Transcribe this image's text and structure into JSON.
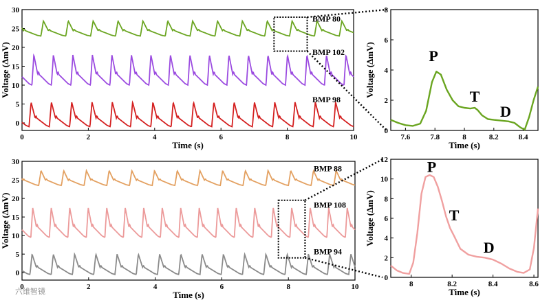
{
  "watermark": "六维智镜",
  "chart_data": [
    {
      "id": "top-main",
      "type": "line",
      "xlabel": "Time (s)",
      "ylabel": "Voltage (ΔmV)",
      "xlim": [
        0,
        10
      ],
      "ylim": [
        -2,
        30
      ],
      "xticks": [
        0,
        2,
        4,
        6,
        8,
        10
      ],
      "yticks": [
        0,
        5,
        10,
        15,
        20,
        25,
        30
      ],
      "series": [
        {
          "name": "BMP 80",
          "bpm": 80,
          "color": "#6aa520",
          "baseline": 23,
          "amp": 4
        },
        {
          "name": "BMP 102",
          "bpm": 102,
          "color": "#9b4be0",
          "baseline": 10,
          "amp": 8
        },
        {
          "name": "BMP 98",
          "bpm": 98,
          "color": "#d42020",
          "baseline": -1,
          "amp": 6.5
        }
      ],
      "zoom_box": {
        "x": [
          7.6,
          8.6
        ],
        "y": [
          19,
          28
        ]
      }
    },
    {
      "id": "top-zoom",
      "type": "line",
      "xlabel": "Time (s)",
      "ylabel": "Voltage (ΔmV)",
      "xlim": [
        7.5,
        8.5
      ],
      "ylim": [
        0,
        8
      ],
      "xticks": [
        7.6,
        7.8,
        8.0,
        8.2,
        8.4
      ],
      "yticks": [
        0,
        2,
        4,
        6,
        8
      ],
      "color": "#6aa520",
      "x": [
        7.5,
        7.55,
        7.6,
        7.65,
        7.7,
        7.74,
        7.78,
        7.81,
        7.84,
        7.88,
        7.92,
        7.96,
        8.0,
        8.04,
        8.07,
        8.09,
        8.12,
        8.16,
        8.2,
        8.25,
        8.3,
        8.34,
        8.38,
        8.41,
        8.44,
        8.47,
        8.5
      ],
      "y": [
        0.7,
        0.5,
        0.35,
        0.3,
        0.45,
        1.3,
        3.2,
        3.9,
        3.7,
        2.7,
        2.0,
        1.6,
        1.5,
        1.45,
        1.5,
        1.35,
        1.0,
        0.75,
        0.7,
        0.65,
        0.6,
        0.5,
        0.2,
        0.05,
        0.9,
        2.0,
        2.9
      ],
      "annotations": [
        {
          "label": "P",
          "x": 7.79,
          "y": 4.6
        },
        {
          "label": "T",
          "x": 8.07,
          "y": 1.9
        },
        {
          "label": "D",
          "x": 8.28,
          "y": 0.9
        }
      ]
    },
    {
      "id": "bottom-main",
      "type": "line",
      "xlabel": "Time (s)",
      "ylabel": "Voltage (ΔmV)",
      "xlim": [
        0,
        10
      ],
      "ylim": [
        -2,
        30
      ],
      "xticks": [
        0,
        2,
        4,
        6,
        8,
        10
      ],
      "yticks": [
        0,
        5,
        10,
        15,
        20,
        25,
        30
      ],
      "series": [
        {
          "name": "BMP 88",
          "bpm": 88,
          "color": "#e3a060",
          "baseline": 23.5,
          "amp": 4
        },
        {
          "name": "BMP 108",
          "bpm": 108,
          "color": "#ec9a9a",
          "baseline": 9.5,
          "amp": 8
        },
        {
          "name": "BMP 94",
          "bpm": 94,
          "color": "#8a8a8a",
          "baseline": -0.5,
          "amp": 5.5
        }
      ],
      "zoom_box": {
        "x": [
          7.7,
          8.5
        ],
        "y": [
          4,
          19.5
        ]
      }
    },
    {
      "id": "bottom-zoom",
      "type": "line",
      "xlabel": "Time (s)",
      "ylabel": "Voltage (ΔmV)",
      "xlim": [
        7.9,
        8.62
      ],
      "ylim": [
        0,
        12
      ],
      "xticks": [
        8.0,
        8.2,
        8.4,
        8.6
      ],
      "yticks": [
        0,
        2,
        4,
        6,
        8,
        10,
        12
      ],
      "color": "#f0a0a0",
      "x": [
        7.9,
        7.93,
        7.96,
        7.99,
        8.01,
        8.03,
        8.05,
        8.07,
        8.09,
        8.11,
        8.13,
        8.15,
        8.17,
        8.19,
        8.21,
        8.24,
        8.28,
        8.32,
        8.36,
        8.4,
        8.44,
        8.48,
        8.52,
        8.55,
        8.58,
        8.6,
        8.62
      ],
      "y": [
        1.2,
        0.7,
        0.45,
        0.35,
        1.5,
        4.5,
        8.5,
        10.2,
        10.4,
        10.2,
        9.2,
        7.8,
        6.2,
        5.0,
        4.2,
        2.9,
        2.3,
        2.1,
        2.0,
        1.8,
        1.4,
        0.9,
        0.55,
        0.45,
        0.8,
        3.0,
        7.0
      ],
      "annotations": [
        {
          "label": "P",
          "x": 8.1,
          "y": 10.7
        },
        {
          "label": "T",
          "x": 8.21,
          "y": 5.8
        },
        {
          "label": "D",
          "x": 8.38,
          "y": 2.5
        }
      ]
    }
  ]
}
